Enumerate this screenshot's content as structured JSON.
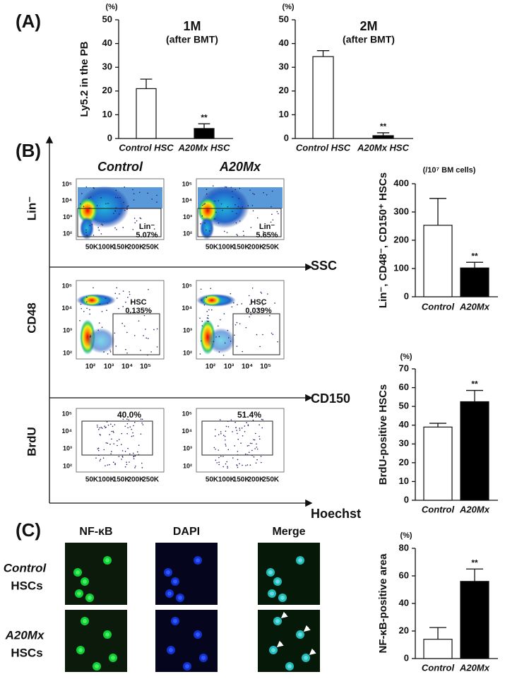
{
  "panels": [
    "(A)",
    "(B)",
    "(C)"
  ],
  "chart_data": [
    {
      "type": "bar",
      "title": "1M",
      "subtitle": "(after BMT)",
      "y_unit": "(%)",
      "y_label": "Ly5.2 in the PB",
      "categories": [
        "Control HSC",
        "A20Mx HSC"
      ],
      "values": [
        21,
        4.2
      ],
      "errors": [
        4,
        2
      ],
      "significance": [
        null,
        "**"
      ],
      "colors": [
        "#ffffff",
        "#000000"
      ],
      "ylim": [
        0,
        50
      ],
      "yticks": [
        0,
        10,
        20,
        30,
        40,
        50
      ]
    },
    {
      "type": "bar",
      "title": "2M",
      "subtitle": "(after BMT)",
      "y_unit": "(%)",
      "categories": [
        "Control HSC",
        "A20Mx HSC"
      ],
      "values": [
        34.5,
        1.2
      ],
      "errors": [
        2.5,
        1.2
      ],
      "significance": [
        null,
        "**"
      ],
      "colors": [
        "#ffffff",
        "#000000"
      ],
      "ylim": [
        0,
        50
      ],
      "yticks": [
        0,
        10,
        20,
        30,
        40,
        50
      ]
    },
    {
      "type": "bar",
      "y_unit": "(/10⁷ BM cells)",
      "y_label": "Lin⁻, CD48⁻, CD150⁺ HSCs",
      "categories": [
        "Control",
        "A20Mx"
      ],
      "values": [
        253,
        102
      ],
      "errors": [
        95,
        20
      ],
      "significance": [
        null,
        "**"
      ],
      "colors": [
        "#ffffff",
        "#000000"
      ],
      "ylim": [
        0,
        400
      ],
      "yticks": [
        0,
        100,
        200,
        300,
        400
      ]
    },
    {
      "type": "bar",
      "y_unit": "(%)",
      "y_label": "BrdU-positive HSCs",
      "categories": [
        "Control",
        "A20Mx"
      ],
      "values": [
        39,
        52.5
      ],
      "errors": [
        2,
        6
      ],
      "significance": [
        null,
        "**"
      ],
      "colors": [
        "#ffffff",
        "#000000"
      ],
      "ylim": [
        0,
        70
      ],
      "yticks": [
        0,
        10,
        20,
        30,
        40,
        50,
        60,
        70
      ]
    },
    {
      "type": "bar",
      "y_unit": "(%)",
      "y_label": "NF-κB-positive area",
      "categories": [
        "Control",
        "A20Mx"
      ],
      "values": [
        14,
        56
      ],
      "errors": [
        8.5,
        9
      ],
      "significance": [
        null,
        "**"
      ],
      "colors": [
        "#ffffff",
        "#000000"
      ],
      "ylim": [
        0,
        80
      ],
      "yticks": [
        0,
        20,
        40,
        60,
        80
      ]
    }
  ],
  "flow": {
    "columns": [
      "Control",
      "A20Mx"
    ],
    "rows": [
      {
        "y_label": "Lin⁻",
        "x_label": "SSC",
        "yticks": [
          "10⁵",
          "10⁴",
          "10³",
          "10²"
        ],
        "xticks": [
          "50K",
          "100K",
          "150K",
          "200K",
          "250K"
        ],
        "gates": [
          [
            "Lin⁻",
            "5.07%"
          ],
          [
            "Lin⁻",
            "5.65%"
          ]
        ]
      },
      {
        "y_label": "CD48",
        "x_label": "CD150",
        "yticks": [
          "10⁵",
          "10⁴",
          "10³",
          "10²"
        ],
        "xticks": [
          "10²",
          "10³",
          "10⁴",
          "10⁵"
        ],
        "gates": [
          [
            "HSC",
            "0.135%"
          ],
          [
            "HSC",
            "0.039%"
          ]
        ]
      },
      {
        "y_label": "BrdU",
        "x_label": "Hoechst",
        "yticks": [
          "10⁵",
          "10⁴",
          "10³",
          "10²"
        ],
        "xticks": [
          "50K",
          "100K",
          "150K",
          "200K",
          "250K"
        ],
        "gates": [
          [
            "40.0%"
          ],
          [
            "51.4%"
          ]
        ]
      }
    ]
  },
  "microscopy": {
    "columns": [
      "NF-κB",
      "DAPI",
      "Merge"
    ],
    "rows": [
      {
        "name": "Control",
        "suffix": "HSCs"
      },
      {
        "name": "A20Mx",
        "suffix": "HSCs"
      }
    ]
  }
}
